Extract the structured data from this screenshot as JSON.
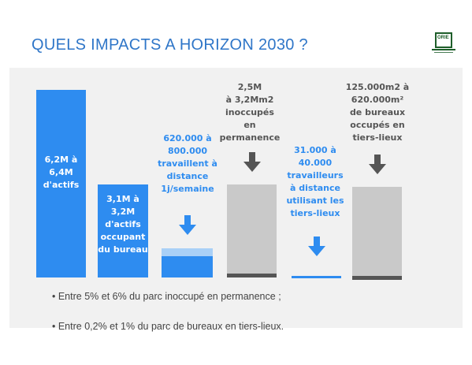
{
  "title": "QUELS IMPACTS A HORIZON 2030 ?",
  "logo": {
    "icon": "orie-logo-icon"
  },
  "colors": {
    "blue": "#2e8cf0",
    "light_blue": "#a9d0f7",
    "gray_bar": "#c9c9c9",
    "dark_strip": "#555555",
    "panel": "#f1f1f1",
    "title": "#2f76c8"
  },
  "columns": [
    {
      "id": "actifs",
      "text": "6,2M à\n6,4M\nd'actifs"
    },
    {
      "id": "bureau",
      "text": "3,1M à\n3,2M\nd'actifs\noccupant\ndu bureau"
    },
    {
      "id": "distance",
      "text": "620.000 à\n800.000\ntravaillent à\ndistance\n1j/semaine"
    },
    {
      "id": "inoccupes",
      "text": "2,5M\nà 3,2Mm2\ninoccupés en\npermanence"
    },
    {
      "id": "tiers_travailleurs",
      "text": "31.000 à\n40.000\ntravailleurs\nà distance\nutilisant les\ntiers-lieux"
    },
    {
      "id": "tiers_bureaux",
      "text": "125.000m2 à\n620.000m²\nde bureaux\noccupés en\ntiers-lieux"
    }
  ],
  "bullets": [
    "• Entre 5% et 6% du parc inoccupé en permanence ;",
    "• Entre 0,2% et 1% du parc de bureaux en tiers-lieux."
  ]
}
